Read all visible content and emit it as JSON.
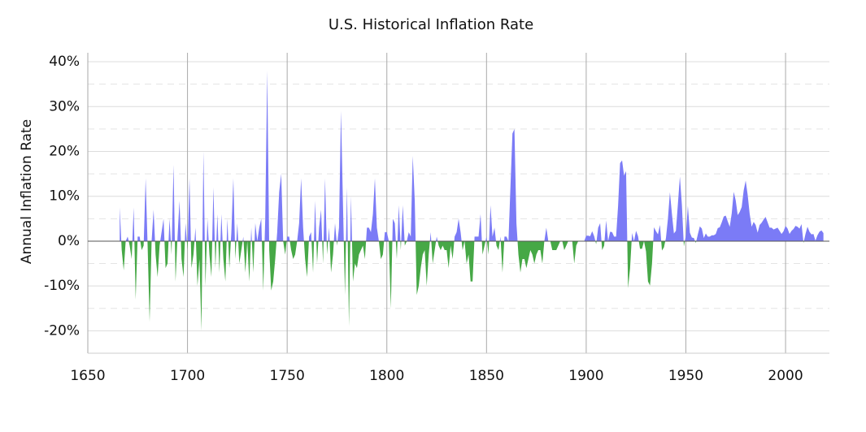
{
  "chart_data": {
    "type": "area",
    "title": "U.S. Historical Inflation Rate",
    "y_label": "Annual Inflation Rate",
    "x": [
      1666,
      1667,
      1668,
      1669,
      1670,
      1671,
      1672,
      1673,
      1674,
      1675,
      1676,
      1677,
      1678,
      1679,
      1680,
      1681,
      1682,
      1683,
      1684,
      1685,
      1686,
      1687,
      1688,
      1689,
      1690,
      1691,
      1692,
      1693,
      1694,
      1695,
      1696,
      1697,
      1698,
      1699,
      1700,
      1701,
      1702,
      1703,
      1704,
      1705,
      1706,
      1707,
      1708,
      1709,
      1710,
      1711,
      1712,
      1713,
      1714,
      1715,
      1716,
      1717,
      1718,
      1719,
      1720,
      1721,
      1722,
      1723,
      1724,
      1725,
      1726,
      1727,
      1728,
      1729,
      1730,
      1731,
      1732,
      1733,
      1734,
      1735,
      1736,
      1737,
      1738,
      1739,
      1740,
      1741,
      1742,
      1743,
      1744,
      1745,
      1746,
      1747,
      1748,
      1749,
      1750,
      1751,
      1752,
      1753,
      1754,
      1755,
      1756,
      1757,
      1758,
      1759,
      1760,
      1761,
      1762,
      1763,
      1764,
      1765,
      1766,
      1767,
      1768,
      1769,
      1770,
      1771,
      1772,
      1773,
      1774,
      1775,
      1776,
      1777,
      1778,
      1779,
      1780,
      1781,
      1782,
      1783,
      1784,
      1785,
      1786,
      1787,
      1788,
      1789,
      1790,
      1791,
      1792,
      1793,
      1794,
      1795,
      1796,
      1797,
      1798,
      1799,
      1800,
      1801,
      1802,
      1803,
      1804,
      1805,
      1806,
      1807,
      1808,
      1809,
      1810,
      1811,
      1812,
      1813,
      1814,
      1815,
      1816,
      1817,
      1818,
      1819,
      1820,
      1821,
      1822,
      1823,
      1824,
      1825,
      1826,
      1827,
      1828,
      1829,
      1830,
      1831,
      1832,
      1833,
      1834,
      1835,
      1836,
      1837,
      1838,
      1839,
      1840,
      1841,
      1842,
      1843,
      1844,
      1845,
      1846,
      1847,
      1848,
      1849,
      1850,
      1851,
      1852,
      1853,
      1854,
      1855,
      1856,
      1857,
      1858,
      1859,
      1860,
      1861,
      1862,
      1863,
      1864,
      1865,
      1866,
      1867,
      1868,
      1869,
      1870,
      1871,
      1872,
      1873,
      1874,
      1875,
      1876,
      1877,
      1878,
      1879,
      1880,
      1881,
      1882,
      1883,
      1884,
      1885,
      1886,
      1887,
      1888,
      1889,
      1890,
      1891,
      1892,
      1893,
      1894,
      1895,
      1896,
      1897,
      1898,
      1899,
      1900,
      1901,
      1902,
      1903,
      1904,
      1905,
      1906,
      1907,
      1908,
      1909,
      1910,
      1911,
      1912,
      1913,
      1914,
      1915,
      1916,
      1917,
      1918,
      1919,
      1920,
      1921,
      1922,
      1923,
      1924,
      1925,
      1926,
      1927,
      1928,
      1929,
      1930,
      1931,
      1932,
      1933,
      1934,
      1935,
      1936,
      1937,
      1938,
      1939,
      1940,
      1941,
      1942,
      1943,
      1944,
      1945,
      1946,
      1947,
      1948,
      1949,
      1950,
      1951,
      1952,
      1953,
      1954,
      1955,
      1956,
      1957,
      1958,
      1959,
      1960,
      1961,
      1962,
      1963,
      1964,
      1965,
      1966,
      1967,
      1968,
      1969,
      1970,
      1971,
      1972,
      1973,
      1974,
      1975,
      1976,
      1977,
      1978,
      1979,
      1980,
      1981,
      1982,
      1983,
      1984,
      1985,
      1986,
      1987,
      1988,
      1989,
      1990,
      1991,
      1992,
      1993,
      1994,
      1995,
      1996,
      1997,
      1998,
      1999,
      2000,
      2001,
      2002,
      2003,
      2004,
      2005,
      2006,
      2007,
      2008,
      2009,
      2010,
      2011,
      2012,
      2013,
      2014,
      2015,
      2016,
      2017,
      2018,
      2019
    ],
    "values": [
      7.5,
      -2,
      -6.5,
      0,
      1,
      -1,
      -4,
      7.5,
      -13,
      1,
      1,
      -2,
      -1,
      14,
      -1,
      -18,
      0,
      7,
      -3,
      -8,
      -1,
      2,
      5,
      -6,
      -5,
      5,
      -3,
      17,
      -9,
      1,
      9,
      -4,
      -8,
      4,
      -2,
      14,
      -6,
      -3,
      3,
      -10,
      -4,
      -20,
      20,
      -10,
      5,
      -3,
      -8,
      12,
      -6,
      6,
      -7,
      6,
      -4,
      -9,
      5,
      -6,
      2,
      14,
      -4,
      4,
      -5,
      -2,
      1,
      -7,
      0,
      -9,
      3,
      -7,
      4,
      0,
      3,
      5,
      -11,
      5,
      38,
      -2,
      -11,
      -9,
      -4,
      2,
      11,
      15,
      0,
      -3,
      1,
      1,
      -2,
      -4,
      -3,
      0,
      4,
      14,
      3,
      -4,
      -8,
      1,
      2,
      -7,
      9,
      -5,
      3,
      7,
      -5,
      14,
      -3,
      3,
      -7,
      -3,
      4,
      -1,
      3,
      29,
      8,
      -12,
      12,
      -19,
      10,
      -9,
      -5,
      -6,
      -3,
      -2,
      -1,
      -4,
      3,
      3,
      2,
      6,
      14,
      3,
      0,
      -4,
      -3,
      2,
      2,
      0,
      -15,
      5,
      4,
      -4,
      8,
      -2,
      8,
      -1,
      0,
      2,
      1,
      19,
      9,
      -12,
      -10,
      -6,
      -3,
      -2,
      -10,
      -3,
      2,
      -5,
      -2,
      1,
      -1,
      -2,
      -1,
      -2,
      -2,
      -6,
      -1,
      -4,
      1,
      2,
      5,
      2,
      -2,
      0,
      -5,
      -3,
      -9,
      -9,
      1,
      1,
      1,
      6,
      -3,
      -1,
      1,
      -3,
      8,
      1,
      3,
      -1,
      -2,
      1,
      -7,
      1,
      1,
      0,
      12,
      24,
      25,
      4,
      -3,
      -7,
      -4,
      -4,
      -6,
      -4,
      -2,
      -3,
      -5,
      -3,
      -2,
      -2,
      -5,
      0,
      3,
      0,
      0,
      -2,
      -2,
      -2,
      -1,
      0,
      0,
      -2,
      -1,
      0,
      0,
      0,
      -5,
      -1,
      0,
      0,
      0,
      0,
      1.2,
      1.2,
      1.1,
      2.2,
      1.1,
      -0.7,
      3,
      4,
      -2,
      -1,
      4.6,
      0,
      2.1,
      2,
      1,
      1,
      7.9,
      17.4,
      18,
      14.6,
      15.6,
      -10.5,
      -6.1,
      1.8,
      0,
      2.3,
      1.1,
      -1.7,
      -1.7,
      0,
      -2.3,
      -9,
      -9.9,
      -5.1,
      3.1,
      2.2,
      1.5,
      3.6,
      -2.1,
      -1.4,
      0.7,
      5,
      10.9,
      6.1,
      1.7,
      2.3,
      8.3,
      14.4,
      8.1,
      -1.2,
      1.3,
      7.9,
      1.9,
      0.8,
      0.7,
      -0.4,
      1.5,
      3.3,
      2.8,
      0.7,
      1.7,
      1,
      1,
      1.3,
      1.3,
      1.6,
      2.9,
      3.1,
      4.2,
      5.5,
      5.7,
      4.4,
      3.2,
      6.2,
      11,
      9.1,
      5.8,
      6.5,
      7.6,
      11.3,
      13.5,
      10.3,
      6.1,
      3.2,
      4.3,
      3.6,
      1.9,
      3.6,
      4.1,
      4.8,
      5.4,
      4.2,
      3,
      3,
      2.6,
      2.8,
      3,
      2.3,
      1.6,
      2.2,
      3.4,
      2.8,
      1.6,
      2.3,
      2.7,
      3.4,
      3.2,
      2.8,
      3.8,
      -0.4,
      1.6,
      3.2,
      2.1,
      1.5,
      1.6,
      0.1,
      1.3,
      2.1,
      2.4,
      1.8
    ],
    "positive_color": "#7b7bf6",
    "negative_color": "#46a846",
    "xlim": [
      1650,
      2022
    ],
    "xticks": [
      1650,
      1700,
      1750,
      1800,
      1850,
      1900,
      1950,
      2000
    ],
    "ylim": [
      -25,
      42
    ],
    "yticks": [
      {
        "value": -20,
        "label": "-20%"
      },
      {
        "value": -10,
        "label": "-10%"
      },
      {
        "value": 0,
        "label": "0%"
      },
      {
        "value": 10,
        "label": "10%"
      },
      {
        "value": 20,
        "label": "20%"
      },
      {
        "value": 30,
        "label": "30%"
      },
      {
        "value": 40,
        "label": "40%"
      }
    ],
    "minor_yticks": [
      -15,
      -5,
      5,
      15,
      25,
      35
    ],
    "grid": true
  }
}
